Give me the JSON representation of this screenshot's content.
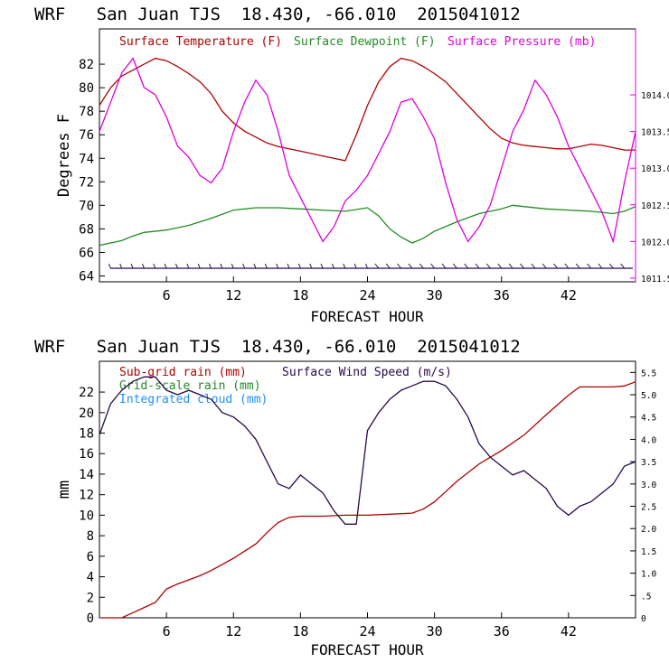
{
  "colors": {
    "temperature": "#b00000",
    "dewpoint": "#228b22",
    "pressure": "#dd00dd",
    "subgrid_rain": "#b00000",
    "gridscale_rain": "#228b22",
    "cloud": "#1e90ff",
    "wind": "#2a0a4a",
    "axis": "#000000"
  },
  "chart_data": [
    {
      "type": "line",
      "title": "WRF   San Juan TJS  18.430, -66.010  2015041012",
      "xlabel": "FORECAST HOUR",
      "ylabel": "Degrees F",
      "xlim": [
        0,
        48
      ],
      "ylim": [
        63.5,
        85
      ],
      "y2lim": [
        1011.45,
        1014.9
      ],
      "x_ticks": [
        6,
        12,
        18,
        24,
        30,
        36,
        42
      ],
      "y_ticks": [
        64,
        66,
        68,
        70,
        72,
        74,
        76,
        78,
        80,
        82
      ],
      "y2_ticks": [
        "1011.5",
        "1012.0",
        "1012.5",
        "1013.0",
        "1013.5",
        "1014.0"
      ],
      "legend": [
        {
          "name": "Surface Temperature (F)",
          "color_key": "temperature"
        },
        {
          "name": "Surface Dewpoint (F)",
          "color_key": "dewpoint"
        },
        {
          "name": "Surface Pressure (mb)",
          "color_key": "pressure"
        }
      ],
      "series": [
        {
          "name": "Surface Temperature (F)",
          "axis": "left",
          "color_key": "temperature",
          "x": [
            0,
            1,
            2,
            3,
            4,
            5,
            6,
            7,
            8,
            9,
            10,
            11,
            12,
            13,
            14,
            15,
            16,
            17,
            18,
            19,
            20,
            21,
            22,
            23,
            24,
            25,
            26,
            27,
            28,
            29,
            30,
            31,
            32,
            33,
            34,
            35,
            36,
            37,
            38,
            39,
            40,
            41,
            42,
            43,
            44,
            45,
            46,
            47,
            48
          ],
          "y": [
            78.5,
            80,
            81,
            81.5,
            82,
            82.5,
            82.3,
            81.8,
            81.2,
            80.5,
            79.5,
            78,
            77,
            76.3,
            75.8,
            75.3,
            75,
            74.8,
            74.6,
            74.4,
            74.2,
            74,
            73.8,
            76,
            78.5,
            80.5,
            81.8,
            82.5,
            82.3,
            81.8,
            81.2,
            80.5,
            79.5,
            78.5,
            77.5,
            76.5,
            75.7,
            75.3,
            75.1,
            75,
            74.9,
            74.8,
            74.8,
            75,
            75.2,
            75.1,
            74.9,
            74.7,
            74.7
          ]
        },
        {
          "name": "Surface Dewpoint (F)",
          "axis": "left",
          "color_key": "dewpoint",
          "x": [
            0,
            2,
            3,
            4,
            6,
            8,
            10,
            12,
            14,
            16,
            18,
            20,
            22,
            24,
            25,
            26,
            27,
            28,
            29,
            30,
            32,
            34,
            36,
            37,
            38,
            40,
            42,
            44,
            46,
            47,
            48
          ],
          "y": [
            66.6,
            67,
            67.4,
            67.7,
            67.9,
            68.3,
            68.9,
            69.6,
            69.8,
            69.8,
            69.7,
            69.6,
            69.5,
            69.8,
            69.1,
            68,
            67.3,
            66.8,
            67.2,
            67.8,
            68.6,
            69.3,
            69.7,
            70,
            69.9,
            69.7,
            69.6,
            69.5,
            69.3,
            69.5,
            69.9
          ]
        },
        {
          "name": "Surface Pressure (mb)",
          "axis": "right",
          "color_key": "pressure",
          "x": [
            0,
            1,
            2,
            3,
            4,
            5,
            6,
            7,
            8,
            9,
            10,
            11,
            12,
            13,
            14,
            15,
            16,
            17,
            18,
            19,
            20,
            21,
            22,
            23,
            24,
            25,
            26,
            27,
            28,
            29,
            30,
            31,
            32,
            33,
            34,
            35,
            36,
            37,
            38,
            39,
            40,
            41,
            42,
            43,
            44,
            45,
            46,
            47,
            48
          ],
          "y": [
            1013.5,
            1013.9,
            1014.3,
            1014.5,
            1014.1,
            1014.0,
            1013.7,
            1013.3,
            1013.15,
            1012.9,
            1012.8,
            1013.0,
            1013.5,
            1013.9,
            1014.2,
            1014.0,
            1013.5,
            1012.9,
            1012.6,
            1012.3,
            1012.0,
            1012.2,
            1012.55,
            1012.7,
            1012.9,
            1013.2,
            1013.5,
            1013.9,
            1013.95,
            1013.7,
            1013.4,
            1012.8,
            1012.3,
            1012.0,
            1012.2,
            1012.5,
            1013.0,
            1013.5,
            1013.8,
            1014.2,
            1014.0,
            1013.7,
            1013.3,
            1013.0,
            1012.7,
            1012.4,
            1012.0,
            1012.8,
            1013.5
          ]
        }
      ]
    },
    {
      "type": "line",
      "title": "WRF   San Juan TJS  18.430, -66.010  2015041012",
      "xlabel": "FORECAST HOUR",
      "ylabel": "mm",
      "xlim": [
        0,
        48
      ],
      "ylim": [
        0,
        25
      ],
      "y2lim": [
        0,
        5.75
      ],
      "x_ticks": [
        6,
        12,
        18,
        24,
        30,
        36,
        42
      ],
      "y_ticks": [
        0,
        2,
        4,
        6,
        8,
        10,
        12,
        14,
        16,
        18,
        20,
        22
      ],
      "y2_ticks": [
        "0",
        ".5",
        "1.0",
        "1.5",
        "2.0",
        "2.5",
        "3.0",
        "3.5",
        "4.0",
        "4.5",
        "5.0",
        "5.5"
      ],
      "legend": [
        {
          "name": "Sub-grid rain (mm)",
          "color_key": "subgrid_rain"
        },
        {
          "name": "Grid-scale rain (mm)",
          "color_key": "gridscale_rain"
        },
        {
          "name": "Integrated cloud (mm)",
          "color_key": "cloud"
        },
        {
          "name": "Surface Wind Speed (m/s)",
          "color_key": "wind"
        }
      ],
      "series": [
        {
          "name": "Sub-grid rain (mm)",
          "axis": "left",
          "color_key": "subgrid_rain",
          "x": [
            0,
            2,
            3,
            4,
            5,
            6,
            7,
            8,
            9,
            10,
            11,
            12,
            13,
            14,
            15,
            16,
            17,
            18,
            20,
            22,
            24,
            26,
            28,
            29,
            30,
            31,
            32,
            34,
            36,
            38,
            40,
            42,
            43,
            44,
            46,
            47,
            48
          ],
          "y": [
            0,
            0,
            0.5,
            1,
            1.5,
            2.8,
            3.3,
            3.7,
            4.1,
            4.6,
            5.2,
            5.8,
            6.5,
            7.2,
            8.3,
            9.3,
            9.8,
            9.9,
            9.9,
            10,
            10,
            10.1,
            10.2,
            10.6,
            11.3,
            12.3,
            13.3,
            15,
            16.3,
            17.8,
            19.8,
            21.7,
            22.5,
            22.5,
            22.5,
            22.6,
            23
          ]
        },
        {
          "name": "Surface Wind Speed (m/s)",
          "axis": "right",
          "color_key": "wind",
          "x": [
            0,
            1,
            2,
            3,
            4,
            5,
            6,
            7,
            8,
            9,
            10,
            11,
            12,
            13,
            14,
            15,
            16,
            17,
            18,
            19,
            20,
            21,
            22,
            23,
            24,
            25,
            26,
            27,
            28,
            29,
            30,
            31,
            32,
            33,
            34,
            35,
            36,
            37,
            38,
            39,
            40,
            41,
            42,
            43,
            44,
            45,
            46,
            47,
            48
          ],
          "y": [
            4.1,
            4.8,
            5.1,
            5.3,
            5.4,
            5.4,
            5.1,
            5.0,
            5.1,
            5.0,
            4.9,
            4.6,
            4.5,
            4.3,
            4.0,
            3.5,
            3.0,
            2.9,
            3.2,
            3.0,
            2.8,
            2.4,
            2.1,
            2.1,
            4.2,
            4.6,
            4.9,
            5.1,
            5.2,
            5.3,
            5.3,
            5.2,
            4.9,
            4.5,
            3.9,
            3.6,
            3.4,
            3.2,
            3.3,
            3.1,
            2.9,
            2.5,
            2.3,
            2.5,
            2.6,
            2.8,
            3.0,
            3.4,
            3.5
          ]
        }
      ]
    }
  ]
}
